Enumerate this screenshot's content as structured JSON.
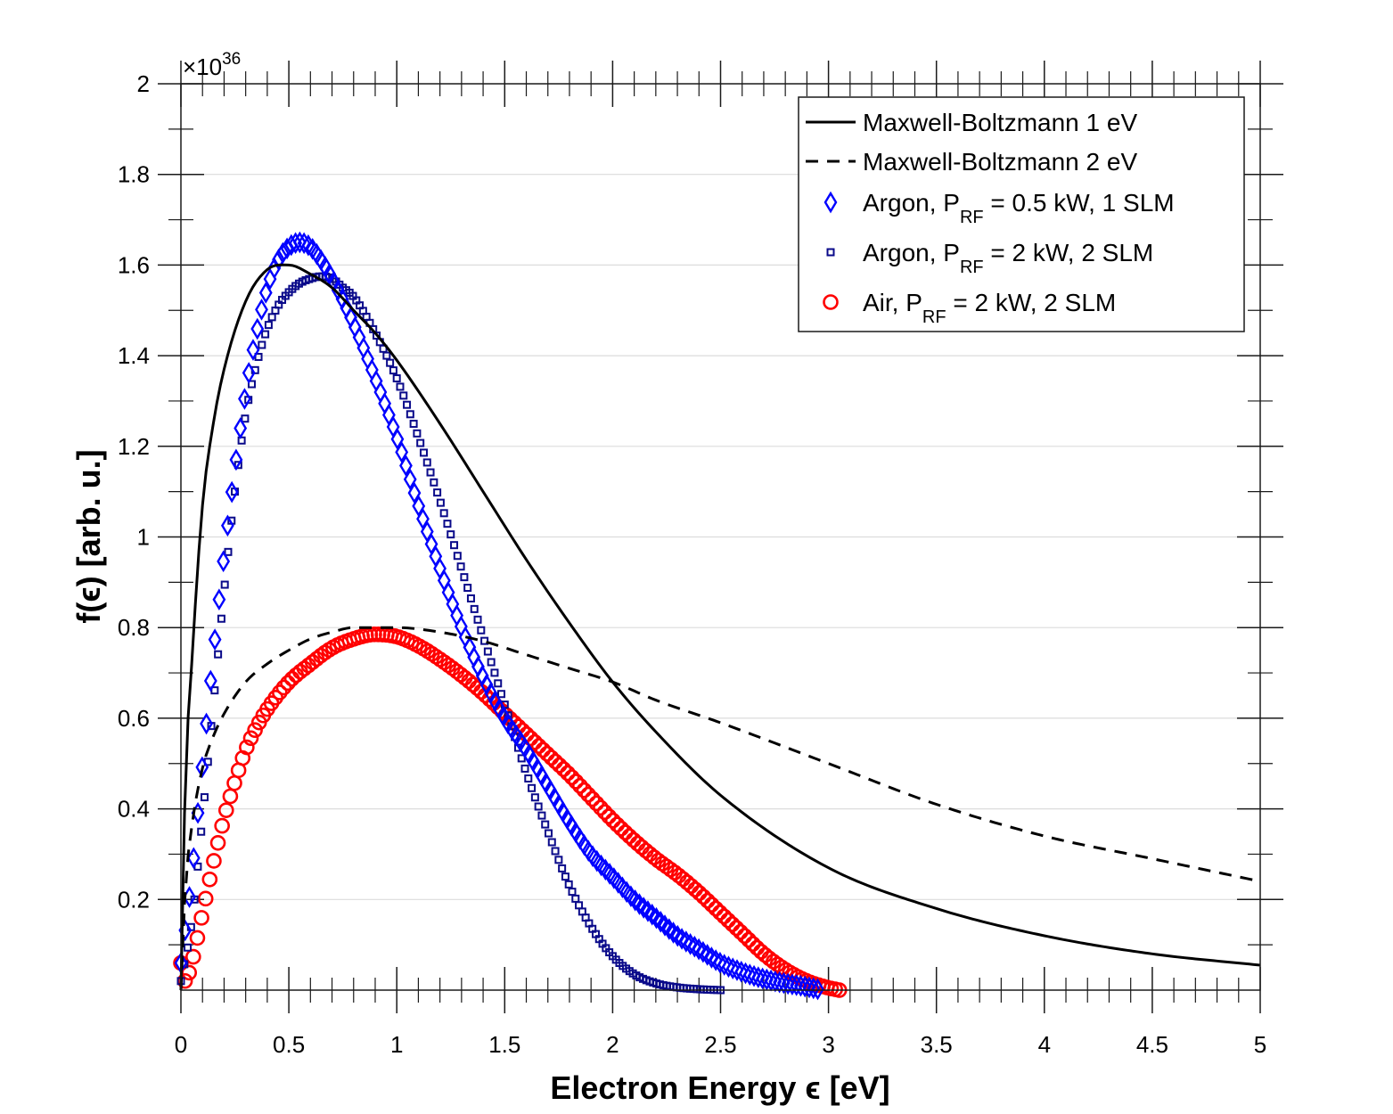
{
  "chart_data": {
    "type": "line",
    "title": "",
    "xlabel": "Electron Energy ϵ [eV]",
    "ylabel": "f(ϵ) [arb. u.]",
    "xlim": [
      0,
      5
    ],
    "ylim": [
      0,
      2
    ],
    "y_multiplier": {
      "base": "×10",
      "exponent": "36"
    },
    "xticks": [
      0,
      0.5,
      1,
      1.5,
      2,
      2.5,
      3,
      3.5,
      4,
      4.5,
      5
    ],
    "xtick_labels": [
      "0",
      "0.5",
      "1",
      "1.5",
      "2",
      "2.5",
      "3",
      "3.5",
      "4",
      "4.5",
      "5"
    ],
    "yticks": [
      0.2,
      0.4,
      0.6,
      0.8,
      1,
      1.2,
      1.4,
      1.6,
      1.8,
      2
    ],
    "ytick_labels": [
      "0.2",
      "0.4",
      "0.6",
      "0.8",
      "1",
      "1.2",
      "1.4",
      "1.6",
      "1.8",
      "2"
    ],
    "grid": "horizontal",
    "legend_position": "top-right",
    "series": [
      {
        "name": "Maxwell-Boltzmann 1 eV",
        "legend": {
          "pre": "Maxwell-Boltzmann 1 eV",
          "sub": "",
          "post": ""
        },
        "style": "line",
        "dash": "solid",
        "color": "#000000",
        "x": [
          0.0,
          0.02,
          0.05,
          0.1,
          0.15,
          0.2,
          0.3,
          0.4,
          0.5,
          0.6,
          0.7,
          0.8,
          0.9,
          1.0,
          1.2,
          1.4,
          1.6,
          1.8,
          2.0,
          2.2,
          2.5,
          3.0,
          3.5,
          4.0,
          4.5,
          5.0
        ],
        "y": [
          0.0,
          0.45,
          0.72,
          1.07,
          1.25,
          1.37,
          1.52,
          1.59,
          1.6,
          1.58,
          1.55,
          1.5,
          1.45,
          1.39,
          1.25,
          1.1,
          0.95,
          0.81,
          0.68,
          0.57,
          0.43,
          0.27,
          0.18,
          0.12,
          0.08,
          0.055
        ]
      },
      {
        "name": "Maxwell-Boltzmann 2 eV",
        "legend": {
          "pre": "Maxwell-Boltzmann 2 eV",
          "sub": "",
          "post": ""
        },
        "style": "line",
        "dash": "dashed",
        "color": "#000000",
        "x": [
          0.0,
          0.02,
          0.05,
          0.1,
          0.15,
          0.2,
          0.3,
          0.4,
          0.5,
          0.6,
          0.7,
          0.8,
          0.9,
          1.0,
          1.2,
          1.4,
          1.6,
          1.8,
          2.0,
          2.2,
          2.5,
          3.0,
          3.5,
          4.0,
          4.5,
          5.0
        ],
        "y": [
          0.0,
          0.22,
          0.36,
          0.49,
          0.56,
          0.61,
          0.68,
          0.72,
          0.75,
          0.775,
          0.79,
          0.8,
          0.8,
          0.8,
          0.79,
          0.77,
          0.74,
          0.71,
          0.68,
          0.64,
          0.59,
          0.5,
          0.41,
          0.34,
          0.29,
          0.24
        ]
      },
      {
        "name": "Argon, PRF = 0.5 kW, 1 SLM",
        "legend": {
          "pre": "Argon, P",
          "sub": "RF",
          "post": " = 0.5 kW, 1 SLM"
        },
        "style": "marker",
        "marker": "diamond",
        "color": "#0000ff",
        "x": [
          0.0,
          0.05,
          0.1,
          0.15,
          0.2,
          0.25,
          0.3,
          0.35,
          0.4,
          0.45,
          0.5,
          0.55,
          0.6,
          0.65,
          0.7,
          0.8,
          0.9,
          1.0,
          1.1,
          1.2,
          1.3,
          1.4,
          1.5,
          1.6,
          1.7,
          1.8,
          1.9,
          2.0,
          2.1,
          2.2,
          2.3,
          2.4,
          2.5,
          2.6,
          2.7,
          2.8,
          2.9,
          2.95
        ],
        "y": [
          0.06,
          0.25,
          0.5,
          0.74,
          0.96,
          1.15,
          1.32,
          1.45,
          1.55,
          1.61,
          1.64,
          1.65,
          1.64,
          1.61,
          1.57,
          1.47,
          1.35,
          1.22,
          1.07,
          0.93,
          0.8,
          0.69,
          0.6,
          0.53,
          0.45,
          0.37,
          0.3,
          0.25,
          0.2,
          0.16,
          0.12,
          0.09,
          0.06,
          0.04,
          0.025,
          0.015,
          0.007,
          0.002
        ]
      },
      {
        "name": "Argon, PRF = 2 kW, 2 SLM",
        "legend": {
          "pre": "Argon, P",
          "sub": "RF",
          "post": " = 2 kW, 2 SLM"
        },
        "style": "marker",
        "marker": "square",
        "color": "#0a0a8a",
        "x": [
          0.0,
          0.05,
          0.1,
          0.15,
          0.2,
          0.25,
          0.3,
          0.35,
          0.4,
          0.45,
          0.5,
          0.55,
          0.6,
          0.65,
          0.7,
          0.75,
          0.8,
          0.9,
          1.0,
          1.1,
          1.2,
          1.3,
          1.4,
          1.5,
          1.6,
          1.7,
          1.8,
          1.9,
          2.0,
          2.1,
          2.2,
          2.3,
          2.4,
          2.5
        ],
        "y": [
          0.02,
          0.15,
          0.38,
          0.63,
          0.88,
          1.1,
          1.27,
          1.38,
          1.46,
          1.51,
          1.54,
          1.56,
          1.57,
          1.575,
          1.57,
          1.55,
          1.53,
          1.45,
          1.35,
          1.22,
          1.08,
          0.93,
          0.78,
          0.63,
          0.48,
          0.35,
          0.23,
          0.14,
          0.075,
          0.035,
          0.015,
          0.006,
          0.002,
          0.0
        ]
      },
      {
        "name": "Air, PRF = 2 kW, 2 SLM",
        "legend": {
          "pre": "Air,  P",
          "sub": "RF",
          "post": " = 2 kW, 2 SLM"
        },
        "style": "marker",
        "marker": "circle",
        "color": "#ff0000",
        "x": [
          0.0,
          0.02,
          0.05,
          0.1,
          0.15,
          0.2,
          0.25,
          0.3,
          0.35,
          0.4,
          0.5,
          0.6,
          0.7,
          0.8,
          0.9,
          1.0,
          1.1,
          1.2,
          1.3,
          1.4,
          1.5,
          1.6,
          1.7,
          1.8,
          1.9,
          2.0,
          2.1,
          2.2,
          2.3,
          2.4,
          2.5,
          2.6,
          2.7,
          2.8,
          2.9,
          3.0,
          3.05
        ],
        "y": [
          0.06,
          0.02,
          0.06,
          0.17,
          0.28,
          0.38,
          0.46,
          0.53,
          0.58,
          0.62,
          0.68,
          0.72,
          0.755,
          0.775,
          0.785,
          0.78,
          0.76,
          0.73,
          0.695,
          0.655,
          0.61,
          0.565,
          0.52,
          0.475,
          0.425,
          0.375,
          0.33,
          0.29,
          0.255,
          0.215,
          0.17,
          0.125,
          0.08,
          0.045,
          0.02,
          0.005,
          0.0
        ]
      }
    ]
  }
}
